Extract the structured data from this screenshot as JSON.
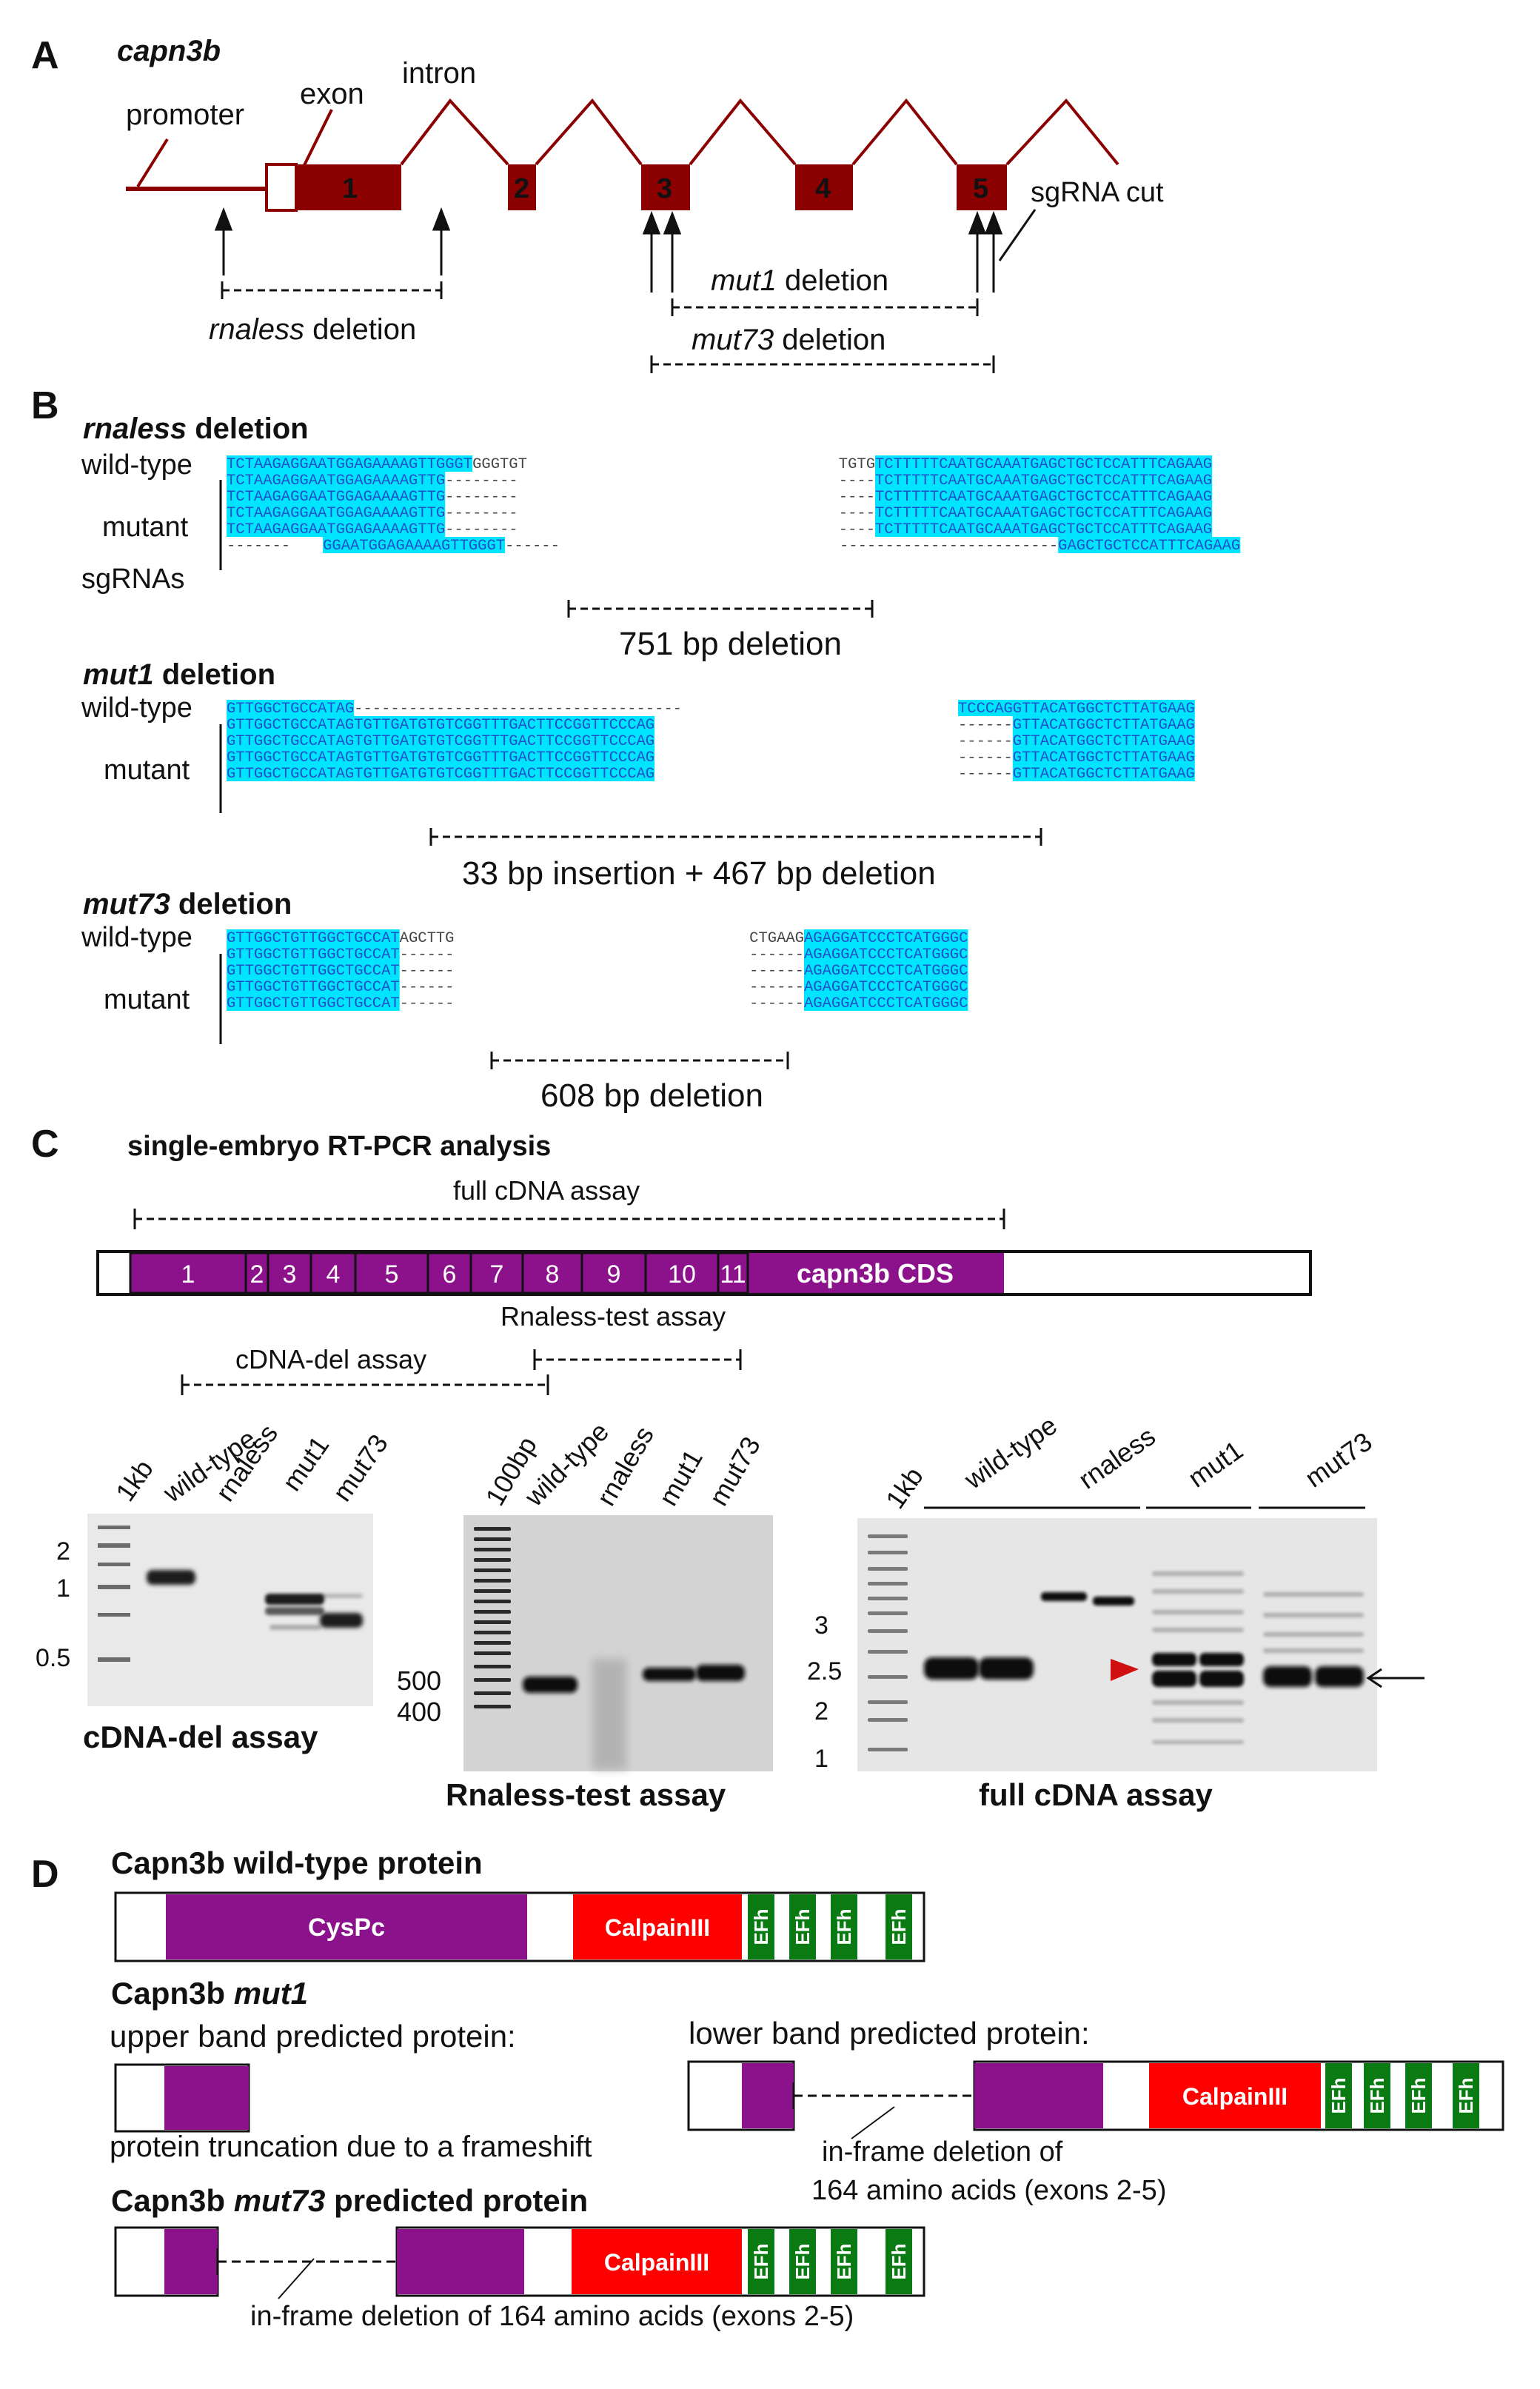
{
  "panel_a": {
    "letter": "A",
    "gene": "capn3b",
    "labels": {
      "promoter": "promoter",
      "exon": "exon",
      "intron": "intron",
      "sgrna": "sgRNA cut"
    },
    "exon_numbers": [
      "1",
      "2",
      "3",
      "4",
      "5"
    ],
    "deletions": {
      "rnaless": [
        "rnaless",
        " deletion"
      ],
      "mut1": [
        "mut1",
        " deletion"
      ],
      "mut73": [
        "mut73",
        " deletion"
      ]
    }
  },
  "panel_b": {
    "letter": "B",
    "rnaless": {
      "title": [
        "rnaless",
        " deletion"
      ],
      "labels": {
        "wt": "wild-type",
        "mutant": "mutant",
        "sgrnas": "sgRNAs"
      },
      "rows": [
        {
          "left": "TCTAAGAGGAATGGAGAAAAGTTGGGT",
          "left_tail": "GGGTGT",
          "right_head": "TGTG",
          "right": "TCTTTTTCAATGCAAATGAGCTGCTCCATTTCAGAAG"
        },
        {
          "left": "TCTAAGAGGAATGGAGAAAAGTTG",
          "left_tail": "--------",
          "right_head": "----",
          "right": "TCTTTTTCAATGCAAATGAGCTGCTCCATTTCAGAAG"
        },
        {
          "left": "TCTAAGAGGAATGGAGAAAAGTTG",
          "left_tail": "--------",
          "right_head": "----",
          "right": "TCTTTTTCAATGCAAATGAGCTGCTCCATTTCAGAAG"
        },
        {
          "left": "TCTAAGAGGAATGGAGAAAAGTTG",
          "left_tail": "--------",
          "right_head": "----",
          "right": "TCTTTTTCAATGCAAATGAGCTGCTCCATTTCAGAAG"
        },
        {
          "left": "TCTAAGAGGAATGGAGAAAAGTTG",
          "left_tail": "--------",
          "right_head": "----",
          "right": "TCTTTTTCAATGCAAATGAGCTGCTCCATTTCAGAAG"
        }
      ],
      "sgrna_row": {
        "lead": "-------",
        "seq1": "GGAATGGAGAAAAGTTGGGT",
        "mid": "------",
        "dash2": "------------------------",
        "seq2": "GAGCTGCTCCATTTCAGAAG"
      },
      "caption": "751 bp deletion"
    },
    "mut1": {
      "title": [
        "mut1",
        " deletion"
      ],
      "labels": {
        "wt": "wild-type",
        "mutant": "mutant"
      },
      "wt_left": "GTTGGCTGCCATAG",
      "wt_gap": "------------------------------------",
      "wt_right": "TCCCAGGTTACATGGCTCTTATGAAG",
      "mut_left": "GTTGGCTGCCATAGTGTTGATGTGTCGGTTTGACTTCCGGTTCCCAG",
      "mut_dash": "------",
      "mut_right": "GTTACATGGCTCTTATGAAG",
      "caption": "33 bp insertion + 467 bp deletion"
    },
    "mut73": {
      "title": [
        "mut73",
        " deletion"
      ],
      "labels": {
        "wt": "wild-type",
        "mutant": "mutant"
      },
      "wt_left": "GTTGGCTGTTGGCTGCCAT",
      "wt_tail": "AGCTTG",
      "wt_head": "CTGAAG",
      "wt_right": "AGAGGATCCCTCATGGGC",
      "mut_left": "GTTGGCTGTTGGCTGCCAT",
      "mut_dash": "------",
      "mut_right": "AGAGGATCCCTCATGGGC",
      "caption": "608 bp deletion"
    }
  },
  "panel_c": {
    "letter": "C",
    "title": "single-embryo RT-PCR analysis",
    "full_assay": "full cDNA assay",
    "cds_label": "capn3b CDS",
    "exons": [
      "1",
      "2",
      "3",
      "4",
      "5",
      "6",
      "7",
      "8",
      "9",
      "10",
      "11"
    ],
    "rnaless_test": "Rnaless-test assay",
    "cdna_del": "cDNA-del assay",
    "gel1": {
      "lanes": [
        "1kb",
        "wild-type",
        "rnaless",
        "mut1",
        "mut73"
      ],
      "markers": [
        "2",
        "1",
        "0.5"
      ],
      "caption": "cDNA-del assay"
    },
    "gel2": {
      "lanes": [
        "100bp",
        "wild-type",
        "rnaless",
        "mut1",
        "mut73"
      ],
      "markers": [
        "500",
        "400"
      ],
      "caption": "Rnaless-test assay"
    },
    "gel3": {
      "lanes": [
        "1kb",
        "wild-type",
        "rnaless",
        "mut1",
        "mut73"
      ],
      "markers": [
        "3",
        "2.5",
        "2",
        "1"
      ],
      "caption": "full cDNA assay"
    }
  },
  "panel_d": {
    "letter": "D",
    "wt_title": "Capn3b wild-type protein",
    "domains": {
      "cys": "CysPc",
      "calpain": "CalpainIII",
      "efh": "EFh"
    },
    "mut1_title": [
      "Capn3b ",
      "mut1"
    ],
    "upper_band": "upper band predicted protein:",
    "lower_band": "lower band predicted protein:",
    "truncation": "protein truncation due to a frameshift",
    "inframe_lines": [
      "in-frame deletion of",
      "164 amino acids (exons 2-5)"
    ],
    "mut73_title": [
      "Capn3b ",
      "mut73",
      " predicted protein"
    ],
    "mut73_caption": "in-frame deletion of 164 amino acids (exons 2-5)"
  },
  "colors": {
    "exon_red": "#8b0000",
    "highlight_cyan": "#00e5ff",
    "seq_blue": "#2050c8",
    "purple": "#8b128b",
    "calpain_red": "#ff0000",
    "efh_green": "#0a7a12",
    "arrowhead_red": "#d01010"
  }
}
